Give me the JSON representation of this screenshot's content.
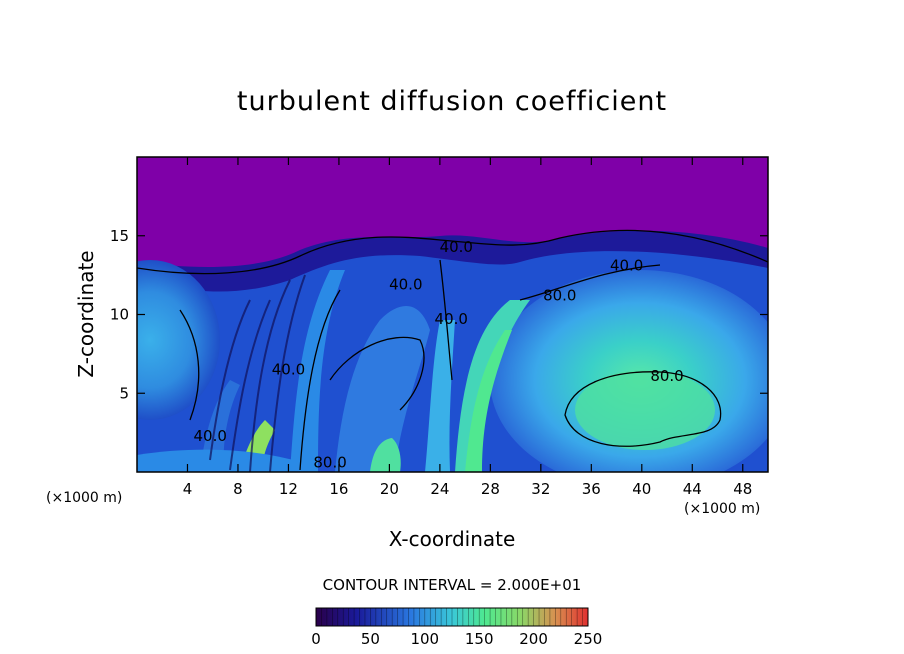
{
  "chart_data": {
    "type": "heatmap",
    "title": "turbulent diffusion coefficient",
    "xlabel": "X-coordinate",
    "ylabel": "Z-coordinate",
    "x_unit_label_left": "(×1000 m)",
    "x_unit_label_right": "(×1000 m)",
    "xlim": [
      0,
      50
    ],
    "ylim": [
      0,
      20
    ],
    "xticks": [
      4,
      8,
      12,
      16,
      20,
      24,
      28,
      32,
      36,
      40,
      44,
      48
    ],
    "yticks": [
      5,
      10,
      15
    ],
    "contour_interval_label": "CONTOUR INTERVAL = 2.000E+01",
    "contour_interval": 20,
    "contour_labels": [
      {
        "text": "40.0",
        "x": 25.3,
        "y": 14.3
      },
      {
        "text": "40.0",
        "x": 21.3,
        "y": 11.9
      },
      {
        "text": "40.0",
        "x": 24.9,
        "y": 9.7
      },
      {
        "text": "40.0",
        "x": 38.8,
        "y": 13.1
      },
      {
        "text": "80.0",
        "x": 33.5,
        "y": 11.2
      },
      {
        "text": "80.0",
        "x": 42.0,
        "y": 6.1
      },
      {
        "text": "40.0",
        "x": 12.0,
        "y": 6.5
      },
      {
        "text": "40.0",
        "x": 5.8,
        "y": 2.3
      },
      {
        "text": "80.0",
        "x": 15.3,
        "y": 0.6
      }
    ],
    "colorbar": {
      "min": 0,
      "max": 250,
      "ticks": [
        0,
        50,
        100,
        150,
        200,
        250
      ],
      "tick_labels": [
        "0",
        "50",
        "100",
        "150",
        "200",
        "250"
      ]
    },
    "colors": {
      "background_top": "#7f00a8",
      "low": "#1d0e8e",
      "mid_blue": "#1f5bd8",
      "light_blue": "#36a8e8",
      "green": "#4fe0a0",
      "red_high": "#d7262a"
    }
  }
}
